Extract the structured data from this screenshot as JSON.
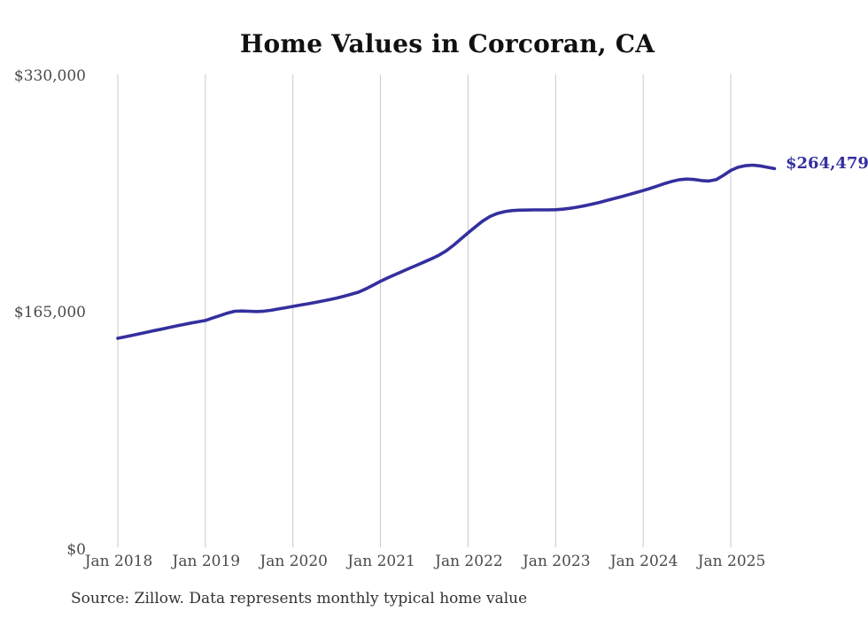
{
  "title": "Home Values in Corcoran, CA",
  "source_note": "Source: Zillow. Data represents monthly typical home value",
  "end_label": "$264,479",
  "colors": {
    "line": "#342f9e",
    "grid": "#c9c9c9",
    "title_text": "#111111",
    "axis_text": "#4a4a4a",
    "source_text": "#333333",
    "background": "#ffffff"
  },
  "chart_data": {
    "type": "line",
    "title": "Home Values in Corcoran, CA",
    "xlabel": "",
    "ylabel": "",
    "ylim": [
      0,
      330000
    ],
    "grid": "vertical-only",
    "legend": "none",
    "y_tick_values": [
      0,
      165000,
      330000
    ],
    "y_tick_labels": [
      "$0",
      "$165,000",
      "$330,000"
    ],
    "x_tick_labels": [
      "Jan 2018",
      "Jan 2019",
      "Jan 2020",
      "Jan 2021",
      "Jan 2022",
      "Jan 2023",
      "Jan 2024",
      "Jan 2025"
    ],
    "end_value": 264479,
    "end_value_label": "$264,479",
    "series": [
      {
        "name": "Monthly typical home value",
        "x": [
          "2018-01",
          "2018-02",
          "2018-03",
          "2018-04",
          "2018-05",
          "2018-06",
          "2018-07",
          "2018-08",
          "2018-09",
          "2018-10",
          "2018-11",
          "2018-12",
          "2019-01",
          "2019-02",
          "2019-03",
          "2019-04",
          "2019-05",
          "2019-06",
          "2019-07",
          "2019-08",
          "2019-09",
          "2019-10",
          "2019-11",
          "2019-12",
          "2020-01",
          "2020-02",
          "2020-03",
          "2020-04",
          "2020-05",
          "2020-06",
          "2020-07",
          "2020-08",
          "2020-09",
          "2020-10",
          "2020-11",
          "2020-12",
          "2021-01",
          "2021-02",
          "2021-03",
          "2021-04",
          "2021-05",
          "2021-06",
          "2021-07",
          "2021-08",
          "2021-09",
          "2021-10",
          "2021-11",
          "2021-12",
          "2022-01",
          "2022-02",
          "2022-03",
          "2022-04",
          "2022-05",
          "2022-06",
          "2022-07",
          "2022-08",
          "2022-09",
          "2022-10",
          "2022-11",
          "2022-12",
          "2023-01",
          "2023-02",
          "2023-03",
          "2023-04",
          "2023-05",
          "2023-06",
          "2023-07",
          "2023-08",
          "2023-09",
          "2023-10",
          "2023-11",
          "2023-12",
          "2024-01",
          "2024-02",
          "2024-03",
          "2024-04",
          "2024-05",
          "2024-06",
          "2024-07",
          "2024-08",
          "2024-09",
          "2024-10",
          "2024-11",
          "2024-12",
          "2025-01",
          "2025-02",
          "2025-03",
          "2025-04",
          "2025-05",
          "2025-06",
          "2025-07"
        ],
        "values": [
          146500,
          147500,
          148600,
          149700,
          150800,
          151900,
          152900,
          154000,
          155100,
          156100,
          157100,
          158000,
          158900,
          160600,
          162300,
          164000,
          165300,
          165500,
          165300,
          165100,
          165400,
          166000,
          166900,
          167800,
          168700,
          169600,
          170500,
          171400,
          172400,
          173400,
          174500,
          175800,
          177100,
          178600,
          180900,
          183500,
          186200,
          188500,
          190800,
          193000,
          195200,
          197400,
          199600,
          201800,
          204300,
          207300,
          211200,
          215500,
          219800,
          224000,
          228000,
          231200,
          233300,
          234600,
          235300,
          235600,
          235700,
          235800,
          235800,
          235800,
          235900,
          236300,
          236900,
          237700,
          238700,
          239800,
          241000,
          242300,
          243600,
          245000,
          246400,
          247800,
          249200,
          250800,
          252500,
          254200,
          255700,
          256800,
          257200,
          256900,
          256200,
          255900,
          256800,
          259800,
          263200,
          265400,
          266500,
          266900,
          266400,
          265400,
          264479
        ]
      }
    ]
  }
}
